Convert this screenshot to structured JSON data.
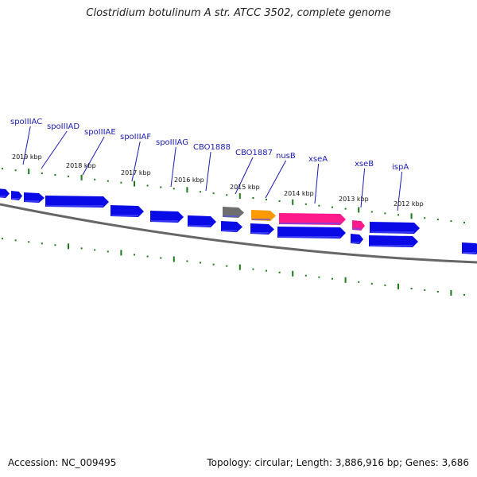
{
  "title": "Clostridium botulinum A str. ATCC 3502, complete genome",
  "footer": {
    "accession": "Accession: NC_009495",
    "topology": "Topology: circular; Length: 3,886,916 bp; Genes: 3,686"
  },
  "colors": {
    "gene_default": "#0a0ae6",
    "gene_grey": "#6e6e6e",
    "gene_orange": "#ff9900",
    "gene_pink": "#ff1a8c",
    "tick": "#1a7a1a",
    "label": "#1a1ab4",
    "backbone": "#666666"
  },
  "scale_labels": [
    "2019 kbp",
    "2018 kbp",
    "2017 kbp",
    "2016 kbp",
    "2015 kbp",
    "2014 kbp",
    "2013 kbp",
    "2012 kbp"
  ],
  "gene_labels": [
    "spoIIIAC",
    "spoIIIAD",
    "spoIIIAE",
    "spoIIIAF",
    "spoIIIAG",
    "CBO1888",
    "CBO1887",
    "nusB",
    "xseA",
    "xseB",
    "ispA"
  ]
}
